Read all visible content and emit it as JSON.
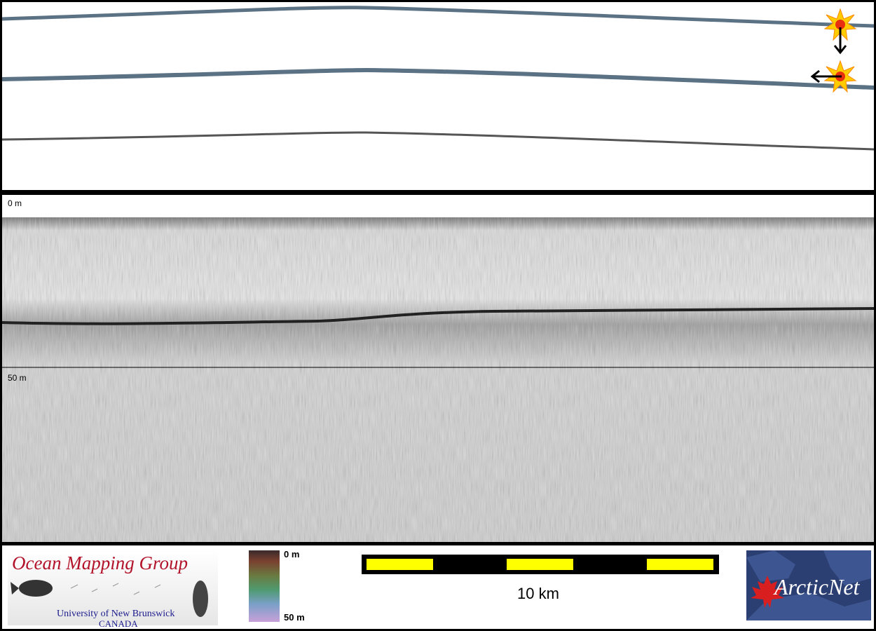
{
  "depth_labels": {
    "top": "0 m",
    "mid": "50 m"
  },
  "colorbar": {
    "top_label": "0 m",
    "bottom_label": "50 m"
  },
  "scalebar": {
    "label": "10 km",
    "segments": 5
  },
  "logo_omg": {
    "title": "Ocean Mapping Group",
    "line1": "University of New Brunswick",
    "line2": "CANADA"
  },
  "logo_arcticnet": {
    "text": "ArcticNet"
  },
  "colors": {
    "swath_line": "#5b7184",
    "scale_yellow": "#ffff00",
    "omg_title": "#b2122a",
    "omg_subtitle": "#1a1a8c",
    "arcticnet_bg": "#2c3f72",
    "marker_sun": "#ffcc00"
  },
  "icons": [
    "sun-marker-icon",
    "arrow-down-icon",
    "arrow-left-icon",
    "maple-leaf-icon",
    "fish-icon"
  ]
}
